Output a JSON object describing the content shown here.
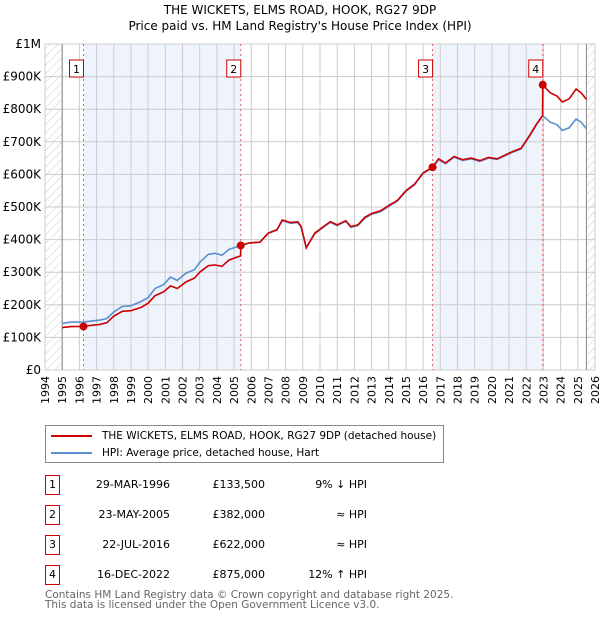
{
  "chart_data": {
    "type": "line",
    "title": "THE WICKETS, ELMS ROAD, HOOK, RG27 9DP",
    "subtitle": "Price paid vs. HM Land Registry's House Price Index (HPI)",
    "xlim": [
      1994,
      2026
    ],
    "ylim": [
      0,
      1000000
    ],
    "y_ticks": [
      {
        "value": 0,
        "label": "£0"
      },
      {
        "value": 100000,
        "label": "£100K"
      },
      {
        "value": 200000,
        "label": "£200K"
      },
      {
        "value": 300000,
        "label": "£300K"
      },
      {
        "value": 400000,
        "label": "£400K"
      },
      {
        "value": 500000,
        "label": "£500K"
      },
      {
        "value": 600000,
        "label": "£600K"
      },
      {
        "value": 700000,
        "label": "£700K"
      },
      {
        "value": 800000,
        "label": "£800K"
      },
      {
        "value": 900000,
        "label": "£900K"
      },
      {
        "value": 1000000,
        "label": "£1M"
      }
    ],
    "x_ticks": [
      "1994",
      "1995",
      "1996",
      "1997",
      "1998",
      "1999",
      "2000",
      "2001",
      "2002",
      "2003",
      "2004",
      "2005",
      "2006",
      "2007",
      "2008",
      "2009",
      "2010",
      "2011",
      "2012",
      "2013",
      "2014",
      "2015",
      "2016",
      "2017",
      "2018",
      "2019",
      "2020",
      "2021",
      "2022",
      "2023",
      "2024",
      "2025",
      "2026"
    ],
    "grid": true,
    "colors": {
      "property": "#cc0000",
      "hpi": "#5b8fd1",
      "band": "#eef3fc",
      "marker_box": "#cc0000"
    },
    "series": [
      {
        "name": "THE WICKETS, ELMS ROAD, HOOK, RG27 9DP (detached house)",
        "key": "property",
        "points": [
          [
            1995,
            130000
          ],
          [
            1995.5,
            133000
          ],
          [
            1996.24,
            133500
          ],
          [
            1996.7,
            137000
          ],
          [
            1997.2,
            140000
          ],
          [
            1997.6,
            145000
          ],
          [
            1998,
            165000
          ],
          [
            1998.5,
            180000
          ],
          [
            1999,
            182000
          ],
          [
            1999.6,
            192000
          ],
          [
            2000,
            205000
          ],
          [
            2000.4,
            228000
          ],
          [
            2000.9,
            240000
          ],
          [
            2001.3,
            258000
          ],
          [
            2001.7,
            250000
          ],
          [
            2002.2,
            270000
          ],
          [
            2002.7,
            282000
          ],
          [
            2003,
            300000
          ],
          [
            2003.5,
            320000
          ],
          [
            2003.9,
            322000
          ],
          [
            2004.3,
            318000
          ],
          [
            2004.7,
            337000
          ],
          [
            2005.1,
            345000
          ],
          [
            2005.38,
            350000
          ],
          [
            2005.39,
            382000
          ],
          [
            2005.9,
            390000
          ],
          [
            2006.5,
            392000
          ],
          [
            2007,
            420000
          ],
          [
            2007.5,
            430000
          ],
          [
            2007.8,
            460000
          ],
          [
            2008.3,
            452000
          ],
          [
            2008.7,
            455000
          ],
          [
            2008.9,
            440000
          ],
          [
            2009.2,
            375000
          ],
          [
            2009.7,
            420000
          ],
          [
            2010.2,
            440000
          ],
          [
            2010.6,
            455000
          ],
          [
            2011,
            445000
          ],
          [
            2011.5,
            458000
          ],
          [
            2011.8,
            440000
          ],
          [
            2012.2,
            445000
          ],
          [
            2012.6,
            468000
          ],
          [
            2013,
            480000
          ],
          [
            2013.5,
            488000
          ],
          [
            2014,
            505000
          ],
          [
            2014.5,
            520000
          ],
          [
            2015,
            550000
          ],
          [
            2015.5,
            570000
          ],
          [
            2016,
            605000
          ],
          [
            2016.55,
            622000
          ],
          [
            2016.9,
            648000
          ],
          [
            2017.3,
            635000
          ],
          [
            2017.8,
            655000
          ],
          [
            2018.3,
            645000
          ],
          [
            2018.8,
            650000
          ],
          [
            2019.3,
            642000
          ],
          [
            2019.8,
            652000
          ],
          [
            2020.3,
            648000
          ],
          [
            2020.8,
            660000
          ],
          [
            2021.2,
            670000
          ],
          [
            2021.7,
            680000
          ],
          [
            2022.2,
            720000
          ],
          [
            2022.6,
            755000
          ],
          [
            2022.95,
            780000
          ],
          [
            2022.96,
            875000
          ],
          [
            2023.4,
            850000
          ],
          [
            2023.8,
            840000
          ],
          [
            2024.1,
            822000
          ],
          [
            2024.5,
            832000
          ],
          [
            2024.9,
            862000
          ],
          [
            2025.2,
            850000
          ],
          [
            2025.5,
            830000
          ]
        ]
      },
      {
        "name": "HPI: Average price, detached house, Hart",
        "key": "hpi",
        "points": [
          [
            1995,
            143000
          ],
          [
            1995.5,
            147000
          ],
          [
            1996.24,
            147000
          ],
          [
            1996.7,
            150000
          ],
          [
            1997.2,
            153000
          ],
          [
            1997.6,
            158000
          ],
          [
            1998,
            178000
          ],
          [
            1998.5,
            195000
          ],
          [
            1999,
            197000
          ],
          [
            1999.6,
            210000
          ],
          [
            2000,
            222000
          ],
          [
            2000.4,
            250000
          ],
          [
            2000.9,
            262000
          ],
          [
            2001.3,
            285000
          ],
          [
            2001.7,
            275000
          ],
          [
            2002.2,
            297000
          ],
          [
            2002.7,
            308000
          ],
          [
            2003,
            330000
          ],
          [
            2003.5,
            355000
          ],
          [
            2003.9,
            358000
          ],
          [
            2004.3,
            352000
          ],
          [
            2004.7,
            370000
          ],
          [
            2005.1,
            377000
          ],
          [
            2005.39,
            382000
          ],
          [
            2005.9,
            390000
          ],
          [
            2006.5,
            392000
          ],
          [
            2007,
            420000
          ],
          [
            2007.5,
            430000
          ],
          [
            2007.8,
            458000
          ],
          [
            2008.3,
            450000
          ],
          [
            2008.7,
            452000
          ],
          [
            2008.9,
            438000
          ],
          [
            2009.2,
            375000
          ],
          [
            2009.7,
            418000
          ],
          [
            2010.2,
            438000
          ],
          [
            2010.6,
            453000
          ],
          [
            2011,
            443000
          ],
          [
            2011.5,
            456000
          ],
          [
            2011.8,
            438000
          ],
          [
            2012.2,
            443000
          ],
          [
            2012.6,
            465000
          ],
          [
            2013,
            478000
          ],
          [
            2013.5,
            485000
          ],
          [
            2014,
            502000
          ],
          [
            2014.5,
            518000
          ],
          [
            2015,
            548000
          ],
          [
            2015.5,
            568000
          ],
          [
            2016,
            603000
          ],
          [
            2016.55,
            620000
          ],
          [
            2016.9,
            646000
          ],
          [
            2017.3,
            633000
          ],
          [
            2017.8,
            653000
          ],
          [
            2018.3,
            643000
          ],
          [
            2018.8,
            648000
          ],
          [
            2019.3,
            640000
          ],
          [
            2019.8,
            650000
          ],
          [
            2020.3,
            646000
          ],
          [
            2020.8,
            658000
          ],
          [
            2021.2,
            668000
          ],
          [
            2021.7,
            678000
          ],
          [
            2022.2,
            718000
          ],
          [
            2022.6,
            753000
          ],
          [
            2022.95,
            780000
          ],
          [
            2023.4,
            760000
          ],
          [
            2023.8,
            752000
          ],
          [
            2024.1,
            735000
          ],
          [
            2024.5,
            743000
          ],
          [
            2024.9,
            770000
          ],
          [
            2025.2,
            760000
          ],
          [
            2025.5,
            740000
          ]
        ]
      }
    ],
    "bands": [
      [
        1996.24,
        2005.39
      ],
      [
        2016.55,
        2022.96
      ]
    ],
    "hatched": [
      [
        1994,
        1995
      ],
      [
        2025.5,
        2026
      ]
    ],
    "sales": [
      {
        "label": "1",
        "x": 1996.24,
        "y": 133500
      },
      {
        "label": "2",
        "x": 2005.39,
        "y": 382000
      },
      {
        "label": "3",
        "x": 2016.55,
        "y": 622000
      },
      {
        "label": "4",
        "x": 2022.96,
        "y": 875000
      }
    ],
    "legend_placement": "below"
  },
  "legend": {
    "property": "THE WICKETS, ELMS ROAD, HOOK, RG27 9DP (detached house)",
    "hpi": "HPI: Average price, detached house, Hart"
  },
  "transactions": [
    {
      "num": "1",
      "date": "29-MAR-1996",
      "price": "£133,500",
      "relation": "9% ↓ HPI"
    },
    {
      "num": "2",
      "date": "23-MAY-2005",
      "price": "£382,000",
      "relation": "≈ HPI"
    },
    {
      "num": "3",
      "date": "22-JUL-2016",
      "price": "£622,000",
      "relation": "≈ HPI"
    },
    {
      "num": "4",
      "date": "16-DEC-2022",
      "price": "£875,000",
      "relation": "12% ↑ HPI"
    }
  ],
  "footer": {
    "line1": "Contains HM Land Registry data © Crown copyright and database right 2025.",
    "line2": "This data is licensed under the Open Government Licence v3.0."
  }
}
